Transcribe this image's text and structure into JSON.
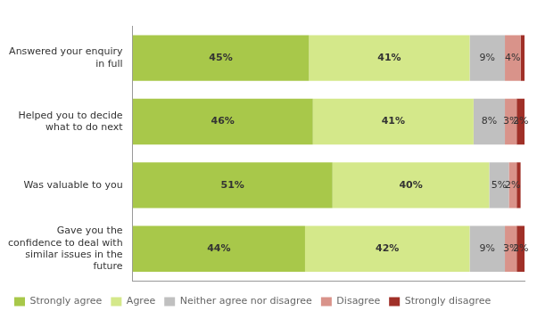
{
  "chart_data": {
    "type": "bar",
    "orientation": "horizontal",
    "stacked": true,
    "categories": [
      "Answered your enquiry\nin full",
      "Helped you to decide\nwhat to do next",
      "Was valuable to you",
      "Gave you the\nconfidence to deal with\nsimilar issues in the\nfuture"
    ],
    "series": [
      {
        "name": "Strongly agree",
        "color": "#A8C84A",
        "values": [
          45,
          46,
          51,
          44
        ],
        "value_labels": [
          "45%",
          "46%",
          "51%",
          "44%"
        ]
      },
      {
        "name": "Agree",
        "color": "#D4E88A",
        "values": [
          41,
          41,
          40,
          42
        ],
        "value_labels": [
          "41%",
          "41%",
          "40%",
          "42%"
        ]
      },
      {
        "name": "Neither agree nor disagree",
        "color": "#C0C0C0",
        "values": [
          9,
          8,
          5,
          9
        ],
        "value_labels": [
          "9%",
          "8%",
          "5%",
          "9%"
        ]
      },
      {
        "name": "Disagree",
        "color": "#D9938A",
        "values": [
          4,
          3,
          2,
          3
        ],
        "value_labels": [
          "4%",
          "3%",
          "2%",
          "3%"
        ]
      },
      {
        "name": "Strongly disagree",
        "color": "#A03028",
        "values": [
          1,
          2,
          1,
          2
        ],
        "value_labels": [
          null,
          "2%",
          null,
          "2%"
        ]
      }
    ],
    "xlim": [
      0,
      100
    ],
    "xticks": [],
    "data_labels": true,
    "tick_labels": "y",
    "legend": "bottom",
    "grid": false
  }
}
